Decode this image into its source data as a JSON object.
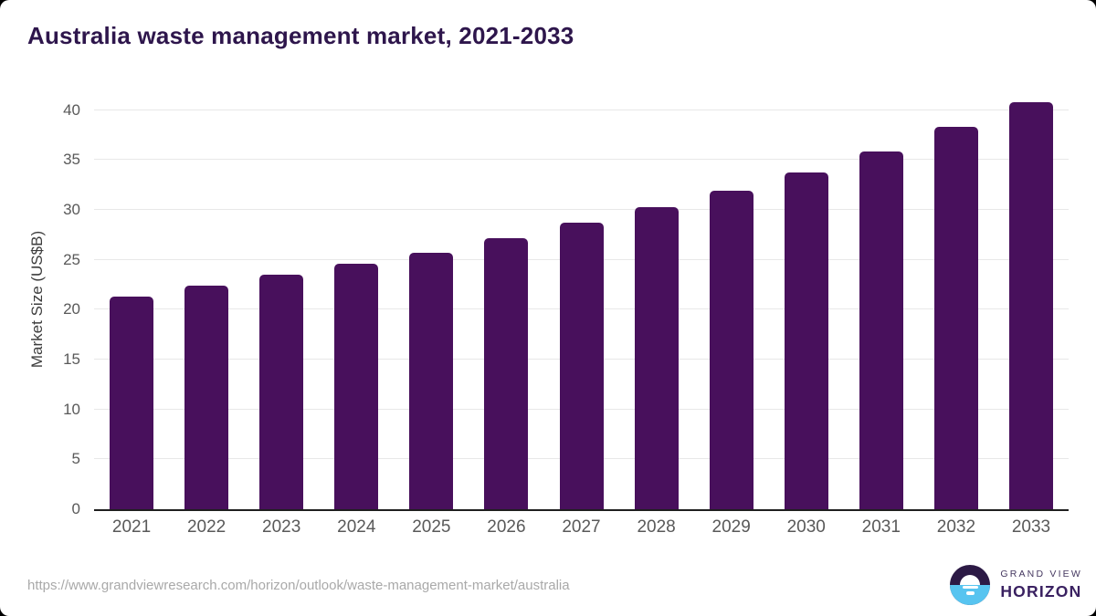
{
  "page_title": "Australia waste management market, 2021-2033",
  "colors": {
    "bar": "#48105c",
    "title_text": "#2e164c",
    "axis_label_text": "#595959",
    "gridline": "#e8e8e8",
    "axis_line": "#1f1f1f",
    "source_text": "#a9a9a9",
    "logo_purple": "#2c1a45",
    "logo_blue": "#57c4f0",
    "logo_text_purple": "#3a2161"
  },
  "chart_data": {
    "type": "bar",
    "title": "Australia waste management market, 2021-2033",
    "categories": [
      "2021",
      "2022",
      "2023",
      "2024",
      "2025",
      "2026",
      "2027",
      "2028",
      "2029",
      "2030",
      "2031",
      "2032",
      "2033"
    ],
    "values": [
      21.3,
      22.4,
      23.5,
      24.6,
      25.7,
      27.2,
      28.7,
      30.3,
      31.9,
      33.8,
      35.9,
      38.3,
      40.8
    ],
    "xlabel": "",
    "ylabel": "Market Size (US$B)",
    "ylim": [
      0,
      42
    ],
    "yticks": [
      0,
      5,
      10,
      15,
      20,
      25,
      30,
      35,
      40
    ],
    "grid": "horizontal",
    "legend": "none",
    "bar_color": "#48105c"
  },
  "footer": {
    "source_url": "https://www.grandviewresearch.com/horizon/outlook/waste-management-market/australia",
    "brand_line1": "GRAND VIEW",
    "brand_line2": "HORIZON"
  }
}
